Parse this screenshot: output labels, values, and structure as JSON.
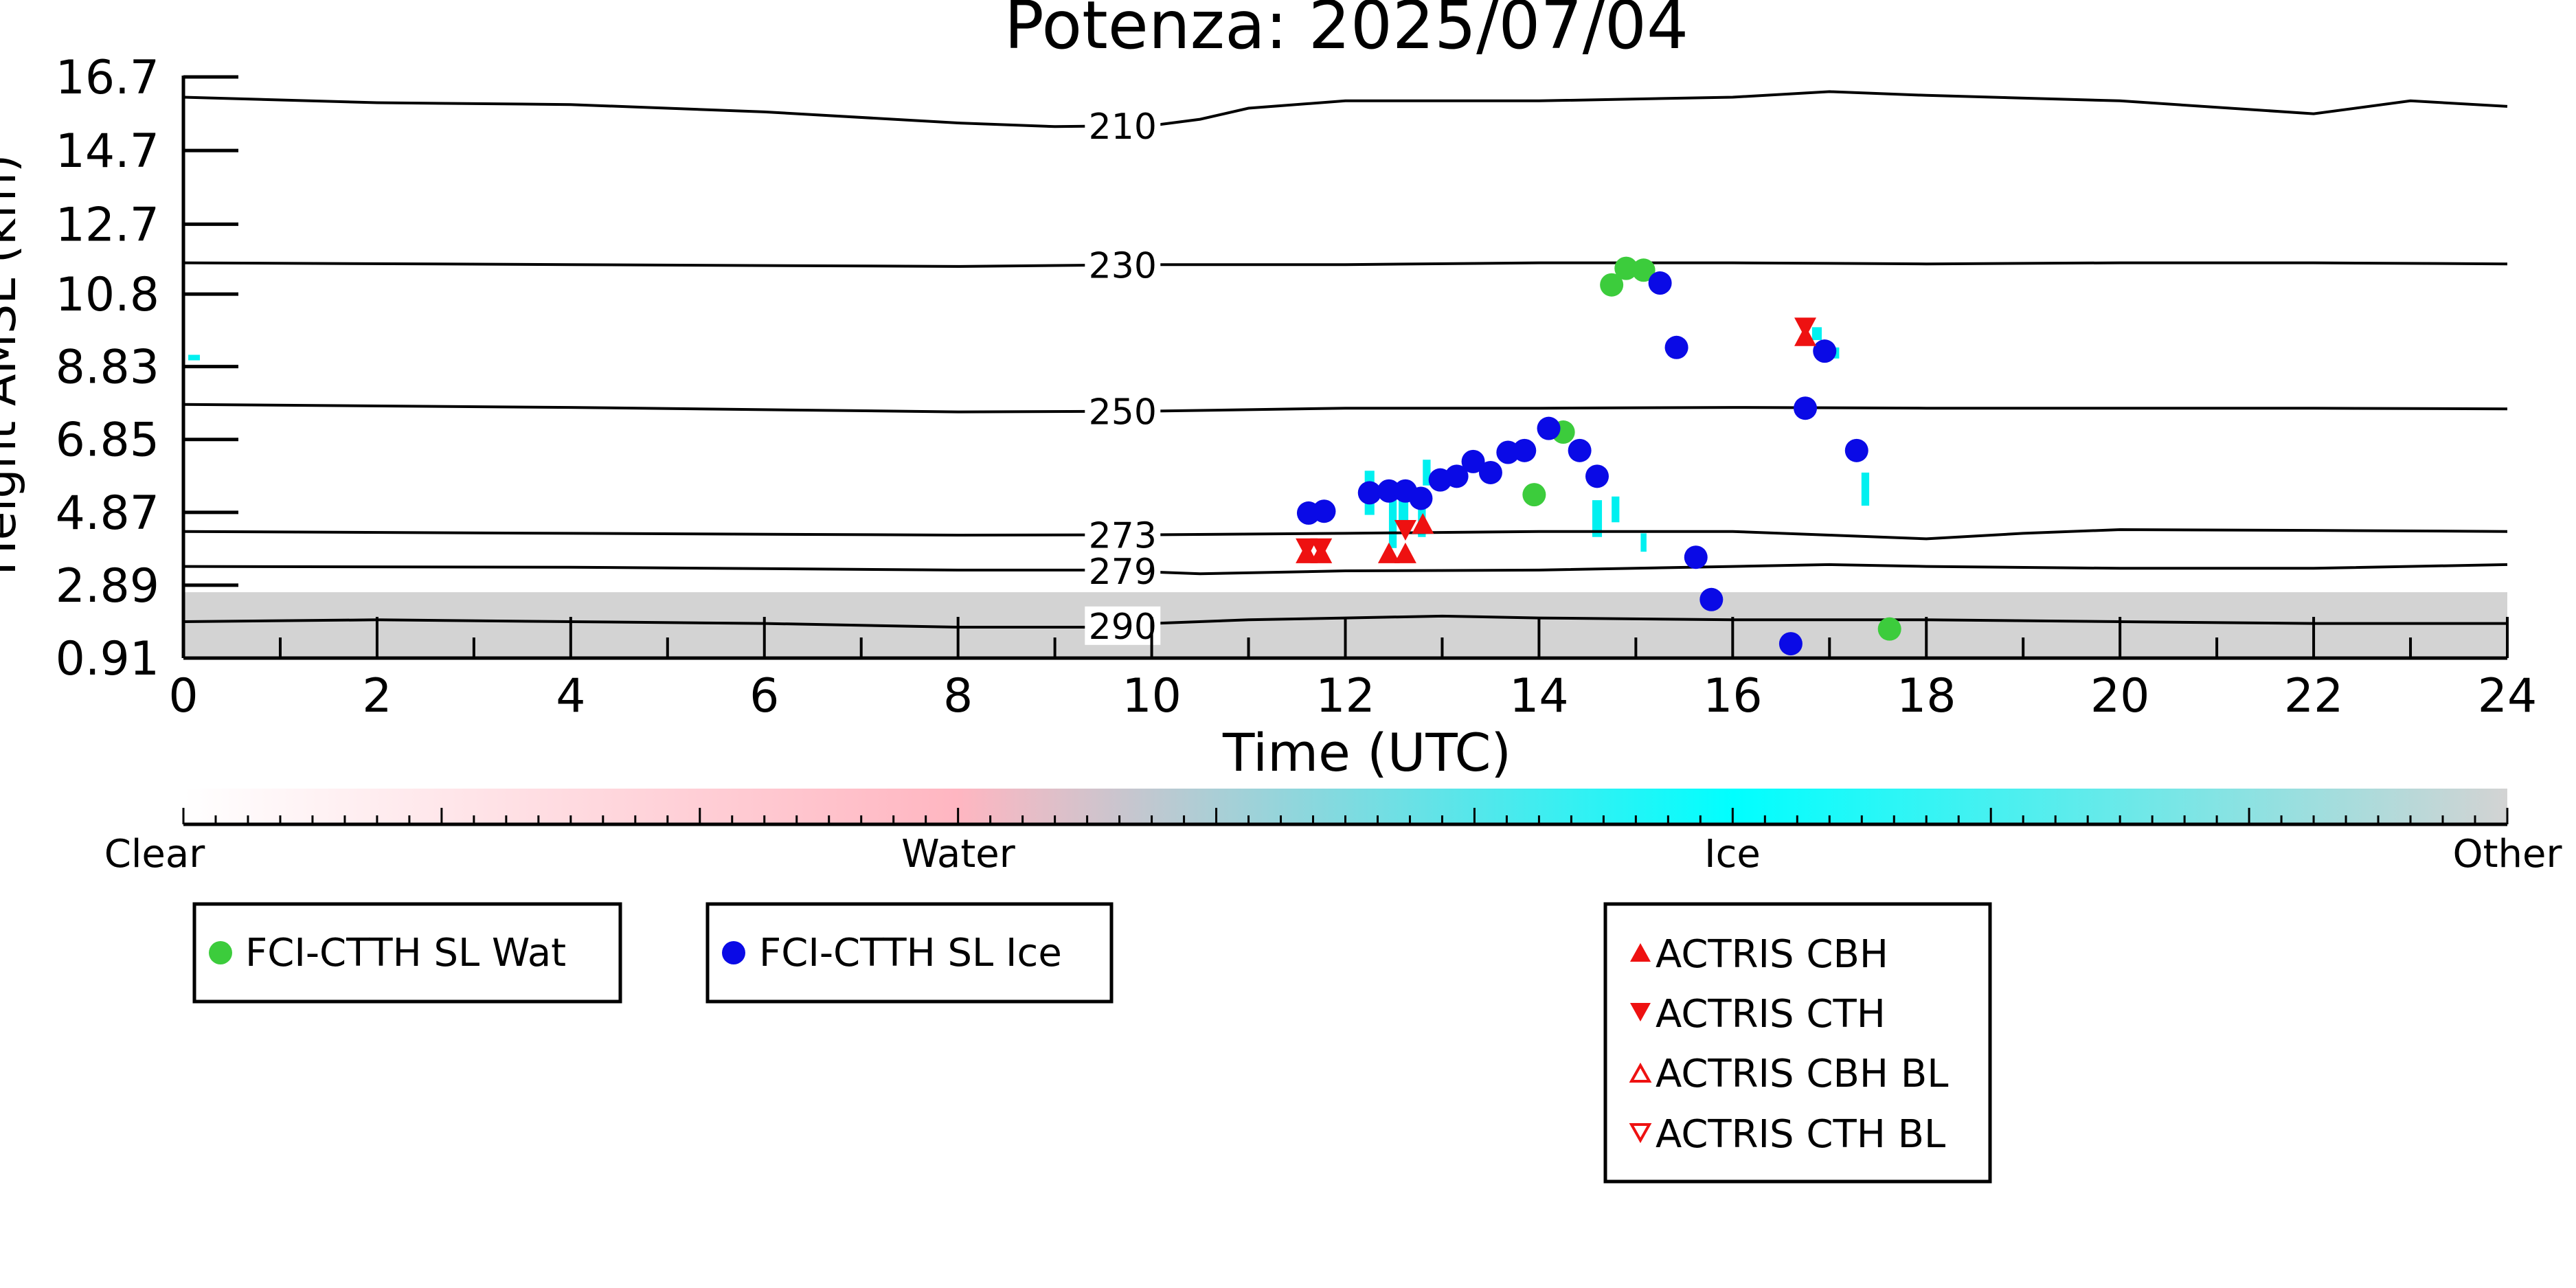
{
  "chart_data": {
    "type": "scatter",
    "title": "Potenza: 2025/07/04",
    "xlabel": "Time (UTC)",
    "ylabel": "Height AMSL (km)",
    "xlim": [
      0,
      24
    ],
    "ylim": [
      0.91,
      16.7
    ],
    "x_ticks": [
      "0",
      "2",
      "4",
      "6",
      "8",
      "10",
      "12",
      "14",
      "16",
      "18",
      "20",
      "22",
      "24"
    ],
    "y_ticks": [
      "0.91",
      "2.89",
      "4.87",
      "6.85",
      "8.83",
      "10.8",
      "12.7",
      "14.7",
      "16.7"
    ],
    "grid": false,
    "background": {
      "description": "cloud classification curtain",
      "clutter_top_km": 2.7,
      "clutter_color": "#d3d3d3"
    },
    "isotherms": [
      {
        "label": "210",
        "points": [
          [
            0,
            16.15
          ],
          [
            2,
            16.0
          ],
          [
            4,
            15.95
          ],
          [
            6,
            15.75
          ],
          [
            8,
            15.45
          ],
          [
            9,
            15.35
          ],
          [
            10,
            15.38
          ],
          [
            10.5,
            15.55
          ],
          [
            11,
            15.85
          ],
          [
            12,
            16.05
          ],
          [
            14,
            16.05
          ],
          [
            16,
            16.15
          ],
          [
            17,
            16.3
          ],
          [
            18,
            16.2
          ],
          [
            20,
            16.05
          ],
          [
            22,
            15.7
          ],
          [
            23,
            16.05
          ],
          [
            24,
            15.9
          ]
        ]
      },
      {
        "label": "230",
        "points": [
          [
            0,
            11.65
          ],
          [
            4,
            11.6
          ],
          [
            8,
            11.55
          ],
          [
            10,
            11.6
          ],
          [
            12,
            11.6
          ],
          [
            14,
            11.65
          ],
          [
            16,
            11.65
          ],
          [
            18,
            11.62
          ],
          [
            20,
            11.65
          ],
          [
            22,
            11.65
          ],
          [
            24,
            11.62
          ]
        ]
      },
      {
        "label": "250",
        "points": [
          [
            0,
            7.8
          ],
          [
            4,
            7.72
          ],
          [
            8,
            7.6
          ],
          [
            10,
            7.62
          ],
          [
            12,
            7.7
          ],
          [
            14,
            7.7
          ],
          [
            16,
            7.72
          ],
          [
            18,
            7.7
          ],
          [
            20,
            7.7
          ],
          [
            22,
            7.7
          ],
          [
            24,
            7.68
          ]
        ]
      },
      {
        "label": "273",
        "points": [
          [
            0,
            4.35
          ],
          [
            4,
            4.3
          ],
          [
            8,
            4.25
          ],
          [
            10,
            4.26
          ],
          [
            12,
            4.3
          ],
          [
            14,
            4.35
          ],
          [
            16,
            4.35
          ],
          [
            17,
            4.25
          ],
          [
            18,
            4.15
          ],
          [
            19,
            4.3
          ],
          [
            20,
            4.4
          ],
          [
            22,
            4.38
          ],
          [
            24,
            4.35
          ]
        ]
      },
      {
        "label": "279",
        "points": [
          [
            0,
            3.4
          ],
          [
            4,
            3.38
          ],
          [
            8,
            3.3
          ],
          [
            9.5,
            3.3
          ],
          [
            10,
            3.25
          ],
          [
            10.5,
            3.2
          ],
          [
            12,
            3.28
          ],
          [
            14,
            3.3
          ],
          [
            16,
            3.4
          ],
          [
            17,
            3.45
          ],
          [
            18,
            3.4
          ],
          [
            20,
            3.35
          ],
          [
            22,
            3.35
          ],
          [
            24,
            3.45
          ]
        ]
      },
      {
        "label": "290",
        "points": [
          [
            0,
            1.9
          ],
          [
            2,
            1.95
          ],
          [
            4,
            1.9
          ],
          [
            6,
            1.85
          ],
          [
            8,
            1.75
          ],
          [
            9.5,
            1.75
          ],
          [
            10,
            1.85
          ],
          [
            11,
            1.95
          ],
          [
            12,
            2.0
          ],
          [
            13,
            2.05
          ],
          [
            14,
            2.0
          ],
          [
            16,
            1.95
          ],
          [
            18,
            1.95
          ],
          [
            20,
            1.9
          ],
          [
            22,
            1.85
          ],
          [
            24,
            1.85
          ]
        ]
      }
    ],
    "series": [
      {
        "name": "FCI-CTTH SL Wat",
        "marker": "circle",
        "color": "#3ccc3c",
        "points": [
          [
            13.95,
            5.35
          ],
          [
            14.25,
            7.05
          ],
          [
            14.75,
            11.05
          ],
          [
            14.9,
            11.5
          ],
          [
            15.08,
            11.45
          ],
          [
            17.62,
            1.7
          ]
        ]
      },
      {
        "name": "FCI-CTTH SL Ice",
        "marker": "circle",
        "color": "#0a0ae6",
        "points": [
          [
            11.62,
            4.85
          ],
          [
            11.78,
            4.9
          ],
          [
            12.25,
            5.4
          ],
          [
            12.45,
            5.45
          ],
          [
            12.62,
            5.45
          ],
          [
            12.78,
            5.25
          ],
          [
            12.98,
            5.75
          ],
          [
            13.15,
            5.85
          ],
          [
            13.32,
            6.25
          ],
          [
            13.5,
            5.95
          ],
          [
            13.68,
            6.5
          ],
          [
            13.85,
            6.55
          ],
          [
            14.1,
            7.15
          ],
          [
            14.42,
            6.55
          ],
          [
            14.6,
            5.85
          ],
          [
            15.25,
            11.1
          ],
          [
            15.42,
            9.35
          ],
          [
            15.62,
            3.65
          ],
          [
            15.78,
            2.5
          ],
          [
            16.6,
            1.3
          ],
          [
            16.75,
            7.7
          ],
          [
            16.95,
            9.25
          ],
          [
            17.28,
            6.55
          ]
        ]
      },
      {
        "name": "ACTRIS CBH",
        "marker": "triangle-up-filled",
        "color": "#ee1111",
        "points": [
          [
            11.6,
            3.75
          ],
          [
            11.75,
            3.75
          ],
          [
            12.45,
            3.75
          ],
          [
            12.62,
            3.75
          ],
          [
            12.8,
            4.55
          ],
          [
            16.75,
            9.65
          ]
        ]
      },
      {
        "name": "ACTRIS CTH",
        "marker": "triangle-down-filled",
        "color": "#ee1111",
        "points": [
          [
            11.6,
            3.9
          ],
          [
            11.75,
            3.9
          ],
          [
            12.62,
            4.4
          ],
          [
            16.75,
            9.9
          ]
        ]
      },
      {
        "name": "ACTRIS CBH BL",
        "marker": "triangle-up-open",
        "color": "#ee1111",
        "points": []
      },
      {
        "name": "ACTRIS CTH BL",
        "marker": "triangle-down-open",
        "color": "#ee1111",
        "points": []
      }
    ],
    "ice_patches": [
      [
        0.05,
        9.0,
        0.12,
        0.15
      ],
      [
        12.2,
        4.8,
        0.1,
        1.2
      ],
      [
        12.45,
        3.9,
        0.08,
        1.7
      ],
      [
        12.55,
        4.6,
        0.1,
        1.0
      ],
      [
        12.75,
        4.2,
        0.08,
        0.9
      ],
      [
        12.8,
        5.6,
        0.08,
        0.7
      ],
      [
        14.55,
        4.2,
        0.1,
        1.0
      ],
      [
        14.75,
        4.6,
        0.08,
        0.7
      ],
      [
        16.82,
        9.55,
        0.1,
        0.35
      ],
      [
        17.02,
        9.05,
        0.08,
        0.3
      ],
      [
        17.33,
        5.05,
        0.08,
        0.9
      ],
      [
        15.05,
        3.8,
        0.06,
        0.5
      ]
    ],
    "colorbar": {
      "labels": [
        "Clear",
        "Water",
        "Ice",
        "Other"
      ],
      "colors": [
        "#ffffff",
        "#ffb6c1",
        "#00ffff",
        "#d3d3d3"
      ]
    },
    "legend_placement": "bottom"
  }
}
